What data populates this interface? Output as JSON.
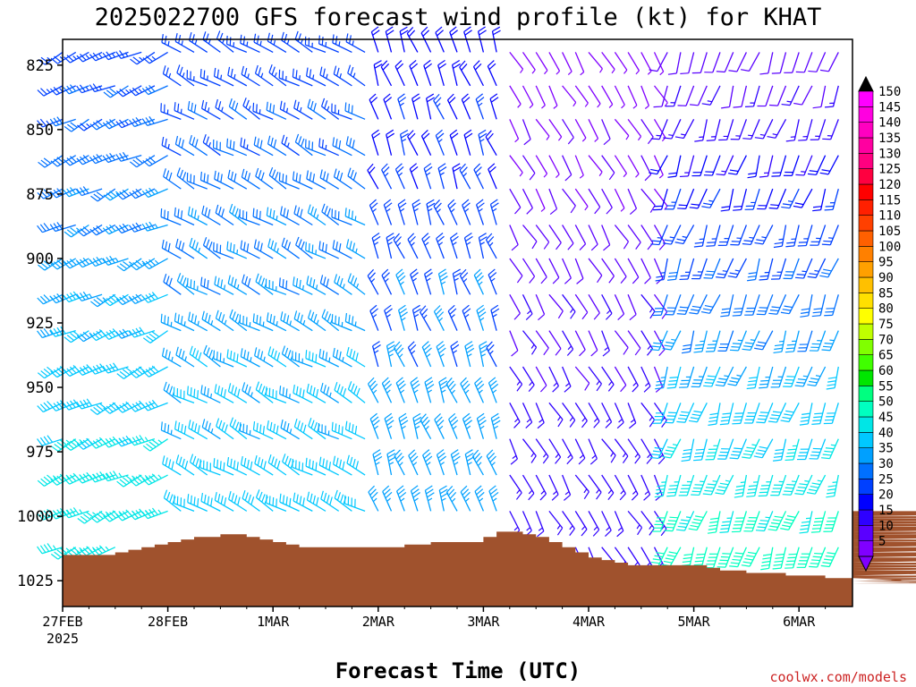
{
  "title": "2025022700 GFS forecast wind profile (kt) for KHAT",
  "credit": "coolwx.com/models",
  "colors": {
    "terrain": "#a0522d",
    "credit": "#cc2222",
    "frame": "#000000"
  },
  "chart_data": {
    "type": "wind-barb-time-height",
    "title": "2025022700 GFS forecast wind profile (kt) for KHAT",
    "xlabel": "Forecast Time (UTC)",
    "ylabel": "",
    "x_ticks": [
      {
        "label": "27FEB",
        "sublabel": "2025",
        "t": 0
      },
      {
        "label": "28FEB",
        "sublabel": "",
        "t": 1
      },
      {
        "label": "1MAR",
        "sublabel": "",
        "t": 2
      },
      {
        "label": "2MAR",
        "sublabel": "",
        "t": 3
      },
      {
        "label": "3MAR",
        "sublabel": "",
        "t": 4
      },
      {
        "label": "4MAR",
        "sublabel": "",
        "t": 5
      },
      {
        "label": "5MAR",
        "sublabel": "",
        "t": 6
      },
      {
        "label": "6MAR",
        "sublabel": "",
        "t": 7
      }
    ],
    "x_range_days": [
      0,
      7.5
    ],
    "y_ticks": [
      825,
      850,
      875,
      900,
      925,
      950,
      975,
      1000,
      1025
    ],
    "y_range_hpa": [
      815,
      1035
    ],
    "barb_levels_hpa": [
      820,
      833,
      846,
      860,
      873,
      887,
      900,
      914,
      928,
      942,
      956,
      970,
      984,
      998,
      1012
    ],
    "time_step_hours": 3,
    "surface_pressure_hpa": [
      1015,
      1015,
      1015,
      1015,
      1014,
      1013,
      1012,
      1011,
      1010,
      1009,
      1008,
      1008,
      1007,
      1007,
      1008,
      1009,
      1010,
      1011,
      1012,
      1012,
      1012,
      1012,
      1012,
      1012,
      1012,
      1012,
      1011,
      1011,
      1010,
      1010,
      1010,
      1010,
      1008,
      1006,
      1006,
      1007,
      1008,
      1010,
      1012,
      1014,
      1016,
      1017,
      1018,
      1019,
      1019,
      1019,
      1019,
      1019,
      1019,
      1020,
      1021,
      1021,
      1022,
      1022,
      1022,
      1023,
      1023,
      1023,
      1024,
      1024,
      1024,
      1024,
      1024,
      1024,
      1025,
      1025,
      1025,
      1025,
      1025,
      1025,
      1026,
      1026,
      1026,
      1026,
      1025,
      1024,
      1023,
      1021,
      1020,
      1019,
      1018,
      1016,
      1014,
      1012,
      1012,
      1010,
      1009,
      1007,
      1006,
      1006,
      1004,
      1003,
      1002,
      1001,
      1000,
      998
    ],
    "wind_regimes": [
      {
        "t_start_h": 0,
        "t_end_h": 27,
        "direction_deg": 245,
        "speed_kt": [
          25,
          30,
          35,
          40,
          45
        ]
      },
      {
        "t_start_h": 27,
        "t_end_h": 72,
        "direction_deg": 300,
        "speed_kt": [
          25,
          30,
          35,
          40
        ]
      },
      {
        "t_start_h": 72,
        "t_end_h": 102,
        "direction_deg": 340,
        "speed_kt": [
          20,
          25,
          35
        ]
      },
      {
        "t_start_h": 102,
        "t_end_h": 138,
        "direction_deg": 150,
        "speed_kt": [
          5,
          10,
          15
        ]
      },
      {
        "t_start_h": 138,
        "t_end_h": 180,
        "direction_deg": 200,
        "speed_kt": [
          10,
          15,
          20,
          25,
          30,
          35,
          40,
          45,
          50
        ]
      }
    ],
    "colorbar": {
      "label_values": [
        5,
        10,
        15,
        20,
        25,
        30,
        35,
        40,
        45,
        50,
        55,
        60,
        65,
        70,
        75,
        80,
        85,
        90,
        95,
        100,
        105,
        110,
        115,
        120,
        125,
        130,
        135,
        140,
        145,
        150
      ],
      "colors": [
        "#8000ff",
        "#5a00ff",
        "#2e00ff",
        "#0000ff",
        "#0040ff",
        "#0070ff",
        "#00a0ff",
        "#00c8ff",
        "#00e6e6",
        "#00ffc0",
        "#00ff80",
        "#00e600",
        "#40ff00",
        "#80ff00",
        "#c0ff00",
        "#ffff00",
        "#ffe000",
        "#ffc000",
        "#ffa000",
        "#ff8000",
        "#ff6000",
        "#ff4000",
        "#ff2000",
        "#ff0000",
        "#ff0040",
        "#ff0080",
        "#ff00a0",
        "#ff00c0",
        "#ff00e0",
        "#ff00ff"
      ],
      "over_arrow_color": "#000000",
      "under_arrow_color": "#8000ff"
    }
  }
}
